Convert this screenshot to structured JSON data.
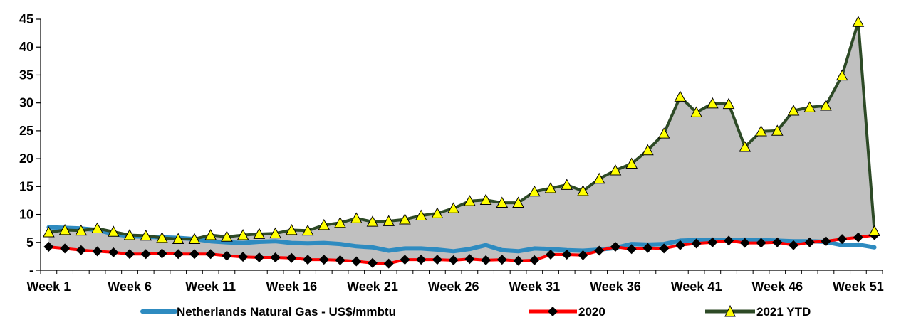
{
  "chart_data": {
    "type": "line",
    "title": "",
    "xlabel": "",
    "ylabel": "",
    "ylim": [
      0,
      45
    ],
    "y_ticks": [
      {
        "value": 0,
        "label": "-"
      },
      {
        "value": 5,
        "label": "5"
      },
      {
        "value": 10,
        "label": "10"
      },
      {
        "value": 15,
        "label": "15"
      },
      {
        "value": 20,
        "label": "20"
      },
      {
        "value": 25,
        "label": "25"
      },
      {
        "value": 30,
        "label": "30"
      },
      {
        "value": 35,
        "label": "35"
      },
      {
        "value": 40,
        "label": "40"
      },
      {
        "value": 45,
        "label": "45"
      }
    ],
    "x_tick_labels": [
      {
        "week": 1,
        "label": "Week 1"
      },
      {
        "week": 6,
        "label": "Week 6"
      },
      {
        "week": 11,
        "label": "Week 11"
      },
      {
        "week": 16,
        "label": "Week 16"
      },
      {
        "week": 21,
        "label": "Week 21"
      },
      {
        "week": 26,
        "label": "Week 26"
      },
      {
        "week": 31,
        "label": "Week 31"
      },
      {
        "week": 36,
        "label": "Week 36"
      },
      {
        "week": 41,
        "label": "Week 41"
      },
      {
        "week": 46,
        "label": "Week 46"
      },
      {
        "week": 51,
        "label": "Week 51"
      }
    ],
    "weeks": [
      1,
      2,
      3,
      4,
      5,
      6,
      7,
      8,
      9,
      10,
      11,
      12,
      13,
      14,
      15,
      16,
      17,
      18,
      19,
      20,
      21,
      22,
      23,
      24,
      25,
      26,
      27,
      28,
      29,
      30,
      31,
      32,
      33,
      34,
      35,
      36,
      37,
      38,
      39,
      40,
      41,
      42,
      43,
      44,
      45,
      46,
      47,
      48,
      49,
      50,
      51,
      52
    ],
    "grid": false,
    "legend_position": "bottom",
    "series": [
      {
        "name": "Netherlands Natural Gas - US$/mmbtu",
        "color": "#2e8bc0",
        "style": "thick-line",
        "values": [
          7.7,
          7.6,
          7.5,
          7.2,
          6.5,
          6.1,
          6.0,
          5.9,
          5.8,
          5.6,
          5.2,
          5.0,
          4.9,
          5.1,
          5.2,
          4.9,
          4.8,
          4.9,
          4.7,
          4.3,
          4.1,
          3.5,
          3.9,
          3.9,
          3.7,
          3.4,
          3.8,
          4.5,
          3.6,
          3.4,
          3.9,
          3.8,
          3.6,
          3.5,
          3.7,
          4.0,
          4.7,
          4.6,
          4.7,
          5.3,
          5.4,
          5.5,
          5.4,
          5.5,
          5.4,
          5.3,
          5.2,
          5.2,
          5.1,
          4.5,
          4.6,
          4.1
        ]
      },
      {
        "name": "2020",
        "color": "#ff0000",
        "marker": "diamond",
        "values": [
          4.2,
          3.9,
          3.6,
          3.4,
          3.2,
          2.9,
          2.9,
          3.0,
          2.9,
          2.9,
          2.9,
          2.6,
          2.4,
          2.3,
          2.3,
          2.2,
          1.9,
          1.9,
          1.8,
          1.6,
          1.3,
          1.2,
          1.9,
          1.9,
          1.9,
          1.8,
          2.0,
          1.8,
          1.9,
          1.7,
          1.8,
          2.8,
          2.8,
          2.7,
          3.5,
          4.2,
          3.8,
          4.0,
          3.9,
          4.5,
          4.8,
          5.0,
          5.3,
          4.9,
          4.9,
          5.0,
          4.5,
          5.0,
          5.2,
          5.6,
          5.9,
          6.3
        ]
      },
      {
        "name": "2021 YTD",
        "color": "#2d4a26",
        "marker": "triangle",
        "marker_color": "#ffff00",
        "values": [
          6.8,
          7.2,
          7.1,
          7.5,
          6.9,
          6.3,
          6.2,
          5.8,
          5.6,
          5.6,
          6.3,
          6.0,
          6.3,
          6.5,
          6.6,
          7.2,
          7.1,
          8.1,
          8.5,
          9.3,
          8.7,
          8.8,
          9.1,
          9.8,
          10.2,
          11.1,
          12.4,
          12.6,
          12.1,
          12.1,
          14.1,
          14.7,
          15.3,
          14.2,
          16.4,
          17.9,
          19.1,
          21.5,
          24.5,
          31.1,
          28.3,
          29.9,
          29.8,
          22.1,
          24.9,
          25.0,
          28.6,
          29.2,
          29.5,
          34.9,
          44.5,
          7.0
        ]
      }
    ],
    "area_colors": {
      "spread": "#c0c0c0",
      "light": "#d9d9d9"
    }
  }
}
